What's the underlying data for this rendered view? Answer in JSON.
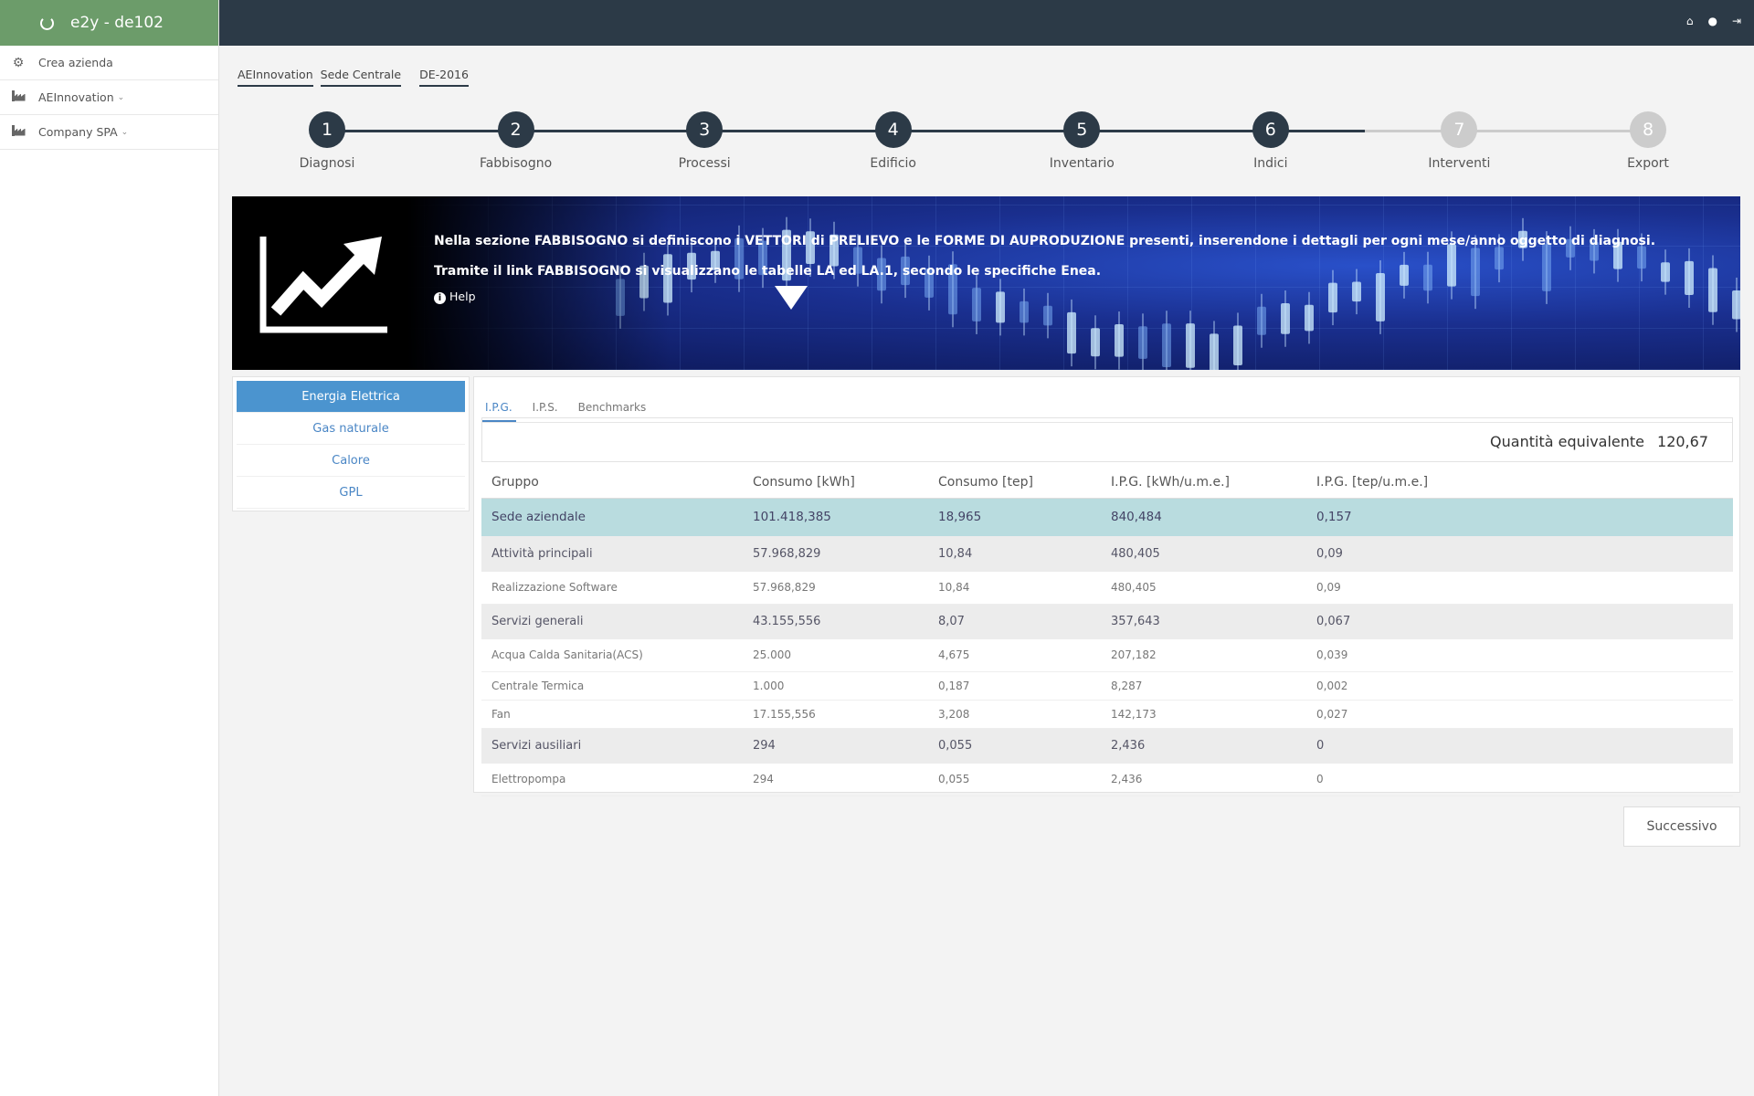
{
  "app": {
    "title": "e2y - de102"
  },
  "sidebar": {
    "items": [
      {
        "label": "Crea azienda",
        "icon": "gear-icon"
      },
      {
        "label": "AEInnovation",
        "icon": "industry-icon"
      },
      {
        "label": "Company SPA",
        "icon": "industry-icon"
      }
    ]
  },
  "topbar": {
    "icons": [
      "home-icon",
      "user-icon",
      "logout-icon"
    ]
  },
  "breadcrumb": [
    "AEInnovation",
    "Sede Centrale",
    "DE-2016"
  ],
  "stepper": {
    "active_until": 6,
    "steps": [
      {
        "num": "1",
        "label": "Diagnosi"
      },
      {
        "num": "2",
        "label": "Fabbisogno"
      },
      {
        "num": "3",
        "label": "Processi"
      },
      {
        "num": "4",
        "label": "Edificio"
      },
      {
        "num": "5",
        "label": "Inventario"
      },
      {
        "num": "6",
        "label": "Indici"
      },
      {
        "num": "7",
        "label": "Interventi"
      },
      {
        "num": "8",
        "label": "Export"
      }
    ]
  },
  "banner": {
    "line1": "Nella sezione FABBISOGNO si definiscono i VETTORI di PRELIEVO e le FORME DI AUPRODUZIONE presenti, inserendone i dettagli per ogni mese/anno oggetto di diagnosi.",
    "line2": "Tramite il link FABBISOGNO si visualizzano le tabelle LA ed LA.1, secondo le specifiche Enea.",
    "help": "Help",
    "icon": "chart-line-icon"
  },
  "energy_nav": [
    "Energia Elettrica",
    "Gas naturale",
    "Calore",
    "GPL"
  ],
  "tabs": [
    "I.P.G.",
    "I.P.S.",
    "Benchmarks"
  ],
  "quantity": {
    "label": "Quantità equivalente",
    "value": "120,67"
  },
  "table": {
    "headers": [
      "Gruppo",
      "Consumo [kWh]",
      "Consumo [tep]",
      "I.P.G. [kWh/u.m.e.]",
      "I.P.G. [tep/u.m.e.]"
    ],
    "rows": [
      {
        "type": "top",
        "cells": [
          "Sede aziendale",
          "101.418,385",
          "18,965",
          "840,484",
          "0,157"
        ]
      },
      {
        "type": "group",
        "cells": [
          "Attività principali",
          "57.968,829",
          "10,84",
          "480,405",
          "0,09"
        ]
      },
      {
        "type": "sub",
        "cells": [
          "Realizzazione Software",
          "57.968,829",
          "10,84",
          "480,405",
          "0,09"
        ]
      },
      {
        "type": "group",
        "cells": [
          "Servizi generali",
          "43.155,556",
          "8,07",
          "357,643",
          "0,067"
        ]
      },
      {
        "type": "sub",
        "cells": [
          "Acqua Calda Sanitaria(ACS)",
          "25.000",
          "4,675",
          "207,182",
          "0,039"
        ]
      },
      {
        "type": "leaf",
        "cells": [
          "Centrale Termica",
          "1.000",
          "0,187",
          "8,287",
          "0,002"
        ]
      },
      {
        "type": "leaf",
        "cells": [
          "Fan",
          "17.155,556",
          "3,208",
          "142,173",
          "0,027"
        ]
      },
      {
        "type": "group",
        "cells": [
          "Servizi ausiliari",
          "294",
          "0,055",
          "2,436",
          "0"
        ]
      },
      {
        "type": "sub",
        "cells": [
          "Elettropompa",
          "294",
          "0,055",
          "2,436",
          "0"
        ]
      }
    ]
  },
  "next_button": "Successivo"
}
